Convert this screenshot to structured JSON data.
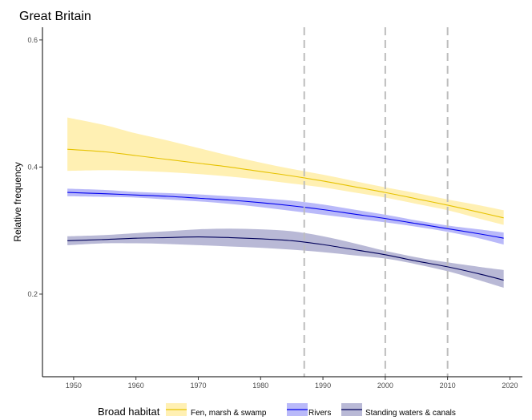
{
  "chart_data": {
    "type": "line",
    "title": "Great Britain",
    "xlabel": "",
    "ylabel": "Relative frequency",
    "xlim": [
      1945,
      2022
    ],
    "ylim": [
      0.07,
      0.62
    ],
    "x_ticks": [
      1950,
      1960,
      1970,
      1980,
      1990,
      2000,
      2010,
      2020
    ],
    "y_ticks": [
      0.2,
      0.4,
      0.6
    ],
    "grid": false,
    "reference_lines_x": [
      1987,
      2000,
      2010
    ],
    "legend": {
      "title": "Broad habitat",
      "position": "bottom"
    },
    "x": [
      1949,
      1955,
      1960,
      1965,
      1970,
      1975,
      1980,
      1985,
      1990,
      1995,
      2000,
      2005,
      2010,
      2015,
      2019
    ],
    "series": [
      {
        "name": "Fen, marsh & swamp",
        "line_color": "#E6C200",
        "fill_color": "#FFE680",
        "values": [
          0.428,
          0.424,
          0.418,
          0.412,
          0.406,
          0.4,
          0.393,
          0.386,
          0.378,
          0.369,
          0.36,
          0.35,
          0.34,
          0.329,
          0.32
        ],
        "lower": [
          0.394,
          0.395,
          0.394,
          0.392,
          0.389,
          0.385,
          0.38,
          0.374,
          0.368,
          0.36,
          0.352,
          0.342,
          0.332,
          0.319,
          0.309
        ],
        "upper": [
          0.478,
          0.466,
          0.453,
          0.442,
          0.43,
          0.418,
          0.407,
          0.397,
          0.388,
          0.378,
          0.368,
          0.359,
          0.349,
          0.34,
          0.332
        ]
      },
      {
        "name": "Rivers",
        "line_color": "#0000EE",
        "fill_color": "#8A8AF5",
        "values": [
          0.36,
          0.358,
          0.356,
          0.354,
          0.351,
          0.348,
          0.344,
          0.339,
          0.333,
          0.326,
          0.319,
          0.311,
          0.303,
          0.295,
          0.288
        ],
        "lower": [
          0.354,
          0.353,
          0.352,
          0.349,
          0.346,
          0.342,
          0.337,
          0.331,
          0.325,
          0.319,
          0.313,
          0.306,
          0.298,
          0.288,
          0.278
        ],
        "upper": [
          0.366,
          0.364,
          0.361,
          0.359,
          0.357,
          0.354,
          0.351,
          0.347,
          0.341,
          0.333,
          0.325,
          0.316,
          0.308,
          0.302,
          0.297
        ]
      },
      {
        "name": "Standing waters & canals",
        "line_color": "#00005A",
        "fill_color": "#8A8ABB",
        "values": [
          0.284,
          0.286,
          0.288,
          0.289,
          0.29,
          0.289,
          0.287,
          0.284,
          0.278,
          0.27,
          0.262,
          0.252,
          0.243,
          0.232,
          0.222
        ],
        "lower": [
          0.277,
          0.28,
          0.28,
          0.279,
          0.277,
          0.275,
          0.273,
          0.27,
          0.266,
          0.261,
          0.256,
          0.247,
          0.236,
          0.222,
          0.21
        ],
        "upper": [
          0.291,
          0.293,
          0.296,
          0.299,
          0.302,
          0.303,
          0.302,
          0.299,
          0.291,
          0.28,
          0.268,
          0.258,
          0.25,
          0.243,
          0.238
        ]
      }
    ]
  }
}
